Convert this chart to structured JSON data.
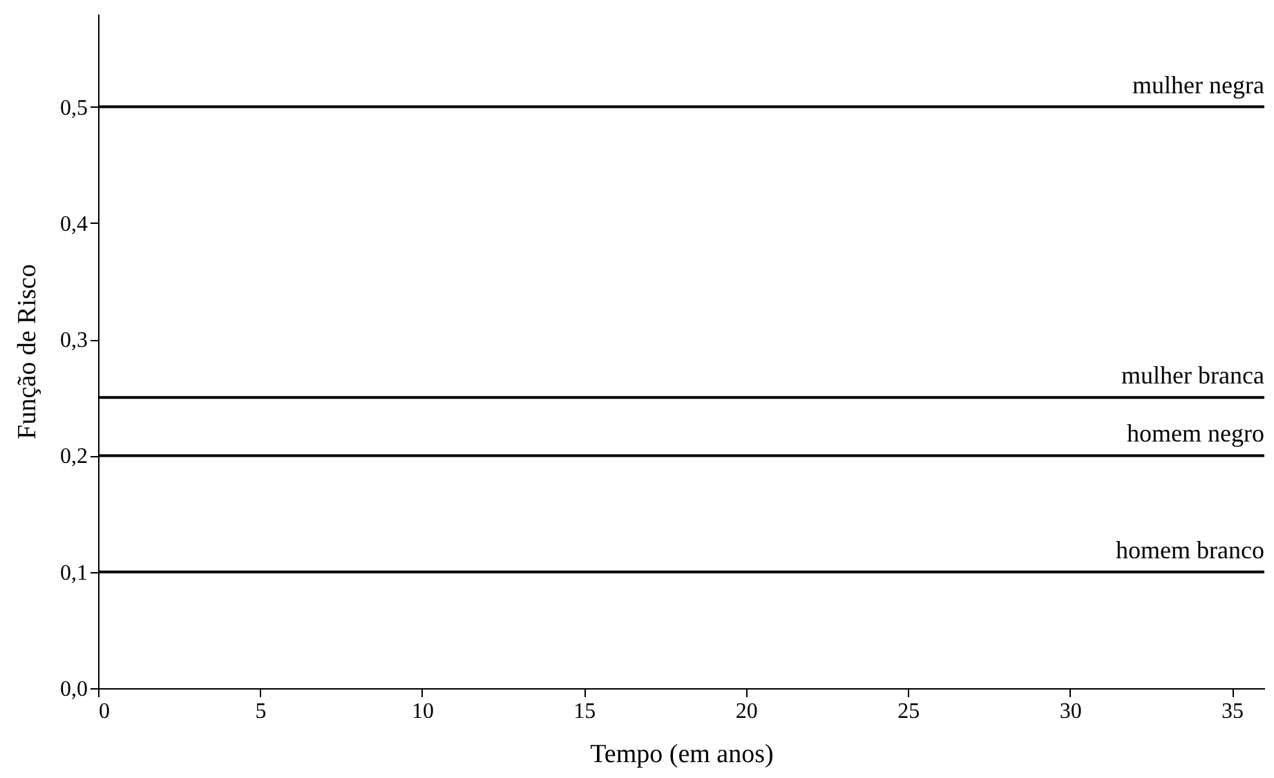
{
  "chart_data": {
    "type": "line",
    "xlabel": "Tempo (em anos)",
    "ylabel": "Função de Risco",
    "x": [
      0,
      36
    ],
    "series": [
      {
        "name": "mulher negra",
        "color": "#000000",
        "values": [
          0.5,
          0.5
        ]
      },
      {
        "name": "mulher branca",
        "color": "#000000",
        "values": [
          0.25,
          0.25
        ]
      },
      {
        "name": "homem negro",
        "color": "#000000",
        "values": [
          0.2,
          0.2
        ]
      },
      {
        "name": "homem branco",
        "color": "#000000",
        "values": [
          0.1,
          0.1
        ]
      }
    ],
    "xlim": [
      0,
      36
    ],
    "xticks": [
      0,
      5,
      10,
      15,
      20,
      25,
      30,
      35
    ],
    "ylim": [
      0,
      0.58
    ],
    "yticks": [
      {
        "value": 0,
        "label": "0,0"
      },
      {
        "value": 0.1,
        "label": "0,1"
      },
      {
        "value": 0.2,
        "label": "0,2"
      },
      {
        "value": 0.3,
        "label": "0,3"
      },
      {
        "value": 0.4,
        "label": "0,4"
      },
      {
        "value": 0.5,
        "label": "0,5"
      }
    ],
    "grid": false,
    "legend": false,
    "marker": "none",
    "line_style": "solid"
  }
}
